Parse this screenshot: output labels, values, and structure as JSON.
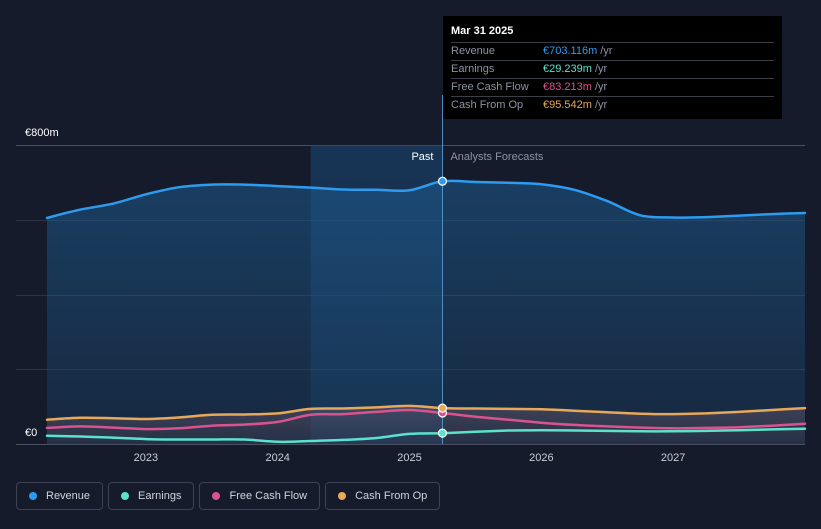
{
  "tooltip": {
    "date": "Mar 31 2025",
    "rows": [
      {
        "label": "Revenue",
        "value": "€703.116m",
        "unit": "/yr",
        "color": "#2d9bf0"
      },
      {
        "label": "Earnings",
        "value": "€29.239m",
        "unit": "/yr",
        "color": "#5ce1cc"
      },
      {
        "label": "Free Cash Flow",
        "value": "€83.213m",
        "unit": "/yr",
        "color": "#d9538f"
      },
      {
        "label": "Cash From Op",
        "value": "€95.542m",
        "unit": "/yr",
        "color": "#e8a85a"
      }
    ]
  },
  "legend": [
    {
      "label": "Revenue",
      "color": "#2d9bf0"
    },
    {
      "label": "Earnings",
      "color": "#5ce1cc"
    },
    {
      "label": "Free Cash Flow",
      "color": "#d9538f"
    },
    {
      "label": "Cash From Op",
      "color": "#e8a85a"
    }
  ],
  "chart_data": {
    "type": "line",
    "y_top_label": "€800m",
    "y_bottom_label": "€0",
    "ylim": [
      0,
      800
    ],
    "xlim": [
      2022.25,
      2028.0
    ],
    "x_ticks": [
      "2023",
      "2024",
      "2025",
      "2026",
      "2027"
    ],
    "x_tick_values": [
      2023,
      2024,
      2025,
      2026,
      2027
    ],
    "past_label": "Past",
    "forecast_label": "Analysts Forecasts",
    "divider_x": 2025.25,
    "past_shade_start": 2024.25,
    "series": [
      {
        "name": "Revenue",
        "color": "#2d9bf0",
        "points": [
          [
            2022.25,
            605
          ],
          [
            2022.5,
            627
          ],
          [
            2022.75,
            643
          ],
          [
            2023.0,
            668
          ],
          [
            2023.25,
            687
          ],
          [
            2023.5,
            694
          ],
          [
            2023.75,
            694
          ],
          [
            2024.0,
            690
          ],
          [
            2024.25,
            686
          ],
          [
            2024.5,
            681
          ],
          [
            2024.75,
            680
          ],
          [
            2025.0,
            679
          ],
          [
            2025.25,
            703
          ],
          [
            2025.5,
            701
          ],
          [
            2025.75,
            699
          ],
          [
            2026.0,
            695
          ],
          [
            2026.25,
            680
          ],
          [
            2026.5,
            650
          ],
          [
            2026.75,
            612
          ],
          [
            2027.0,
            606
          ],
          [
            2027.25,
            607
          ],
          [
            2027.5,
            611
          ],
          [
            2027.75,
            615
          ],
          [
            2028.0,
            618
          ]
        ]
      },
      {
        "name": "Earnings",
        "color": "#5ce1cc",
        "points": [
          [
            2022.25,
            22
          ],
          [
            2022.5,
            20
          ],
          [
            2022.75,
            17
          ],
          [
            2023.0,
            13
          ],
          [
            2023.25,
            12
          ],
          [
            2023.5,
            12
          ],
          [
            2023.75,
            12
          ],
          [
            2024.0,
            6
          ],
          [
            2024.25,
            8
          ],
          [
            2024.5,
            11
          ],
          [
            2024.75,
            16
          ],
          [
            2025.0,
            27
          ],
          [
            2025.25,
            29
          ],
          [
            2025.5,
            33
          ],
          [
            2025.75,
            36
          ],
          [
            2026.0,
            37
          ],
          [
            2026.25,
            36
          ],
          [
            2026.5,
            35
          ],
          [
            2026.75,
            34
          ],
          [
            2027.0,
            34
          ],
          [
            2027.25,
            35
          ],
          [
            2027.5,
            37
          ],
          [
            2027.75,
            39
          ],
          [
            2028.0,
            41
          ]
        ]
      },
      {
        "name": "Free Cash Flow",
        "color": "#d9538f",
        "points": [
          [
            2022.25,
            43
          ],
          [
            2022.5,
            47
          ],
          [
            2022.75,
            44
          ],
          [
            2023.0,
            40
          ],
          [
            2023.25,
            42
          ],
          [
            2023.5,
            49
          ],
          [
            2023.75,
            52
          ],
          [
            2024.0,
            59
          ],
          [
            2024.25,
            78
          ],
          [
            2024.5,
            80
          ],
          [
            2024.75,
            86
          ],
          [
            2025.0,
            91
          ],
          [
            2025.25,
            83
          ],
          [
            2025.5,
            73
          ],
          [
            2025.75,
            65
          ],
          [
            2026.0,
            57
          ],
          [
            2026.25,
            51
          ],
          [
            2026.5,
            47
          ],
          [
            2026.75,
            44
          ],
          [
            2027.0,
            42
          ],
          [
            2027.25,
            43
          ],
          [
            2027.5,
            45
          ],
          [
            2027.75,
            49
          ],
          [
            2028.0,
            54
          ]
        ]
      },
      {
        "name": "Cash From Op",
        "color": "#e8a85a",
        "points": [
          [
            2022.25,
            65
          ],
          [
            2022.5,
            70
          ],
          [
            2022.75,
            69
          ],
          [
            2023.0,
            67
          ],
          [
            2023.25,
            71
          ],
          [
            2023.5,
            78
          ],
          [
            2023.75,
            79
          ],
          [
            2024.0,
            82
          ],
          [
            2024.25,
            94
          ],
          [
            2024.5,
            95
          ],
          [
            2024.75,
            98
          ],
          [
            2025.0,
            102
          ],
          [
            2025.25,
            96
          ],
          [
            2025.5,
            95
          ],
          [
            2025.75,
            94
          ],
          [
            2026.0,
            93
          ],
          [
            2026.25,
            89
          ],
          [
            2026.5,
            85
          ],
          [
            2026.75,
            81
          ],
          [
            2027.0,
            80
          ],
          [
            2027.25,
            82
          ],
          [
            2027.5,
            86
          ],
          [
            2027.75,
            91
          ],
          [
            2028.0,
            96
          ]
        ]
      }
    ]
  }
}
